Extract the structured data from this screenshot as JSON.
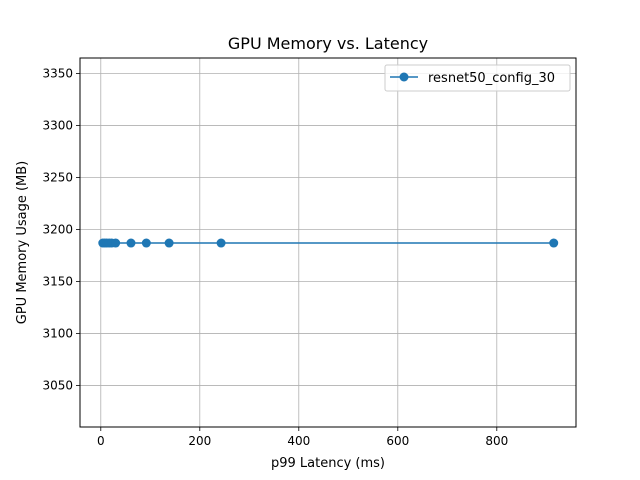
{
  "chart_data": {
    "type": "line",
    "title": "GPU Memory vs. Latency",
    "xlabel": "p99 Latency (ms)",
    "ylabel": "GPU Memory Usage (MB)",
    "xlim": [
      -42,
      960
    ],
    "ylim": [
      3010,
      3365
    ],
    "xticks": [
      0,
      200,
      400,
      600,
      800
    ],
    "yticks": [
      3050,
      3100,
      3150,
      3200,
      3250,
      3300,
      3350
    ],
    "grid": true,
    "legend_position": "top-right",
    "series": [
      {
        "name": "resnet50_config_30",
        "color": "#1f77b4",
        "marker": "circle",
        "x": [
          4,
          8,
          12,
          17,
          22,
          30,
          61,
          92,
          138,
          243,
          915
        ],
        "y": [
          3187,
          3187,
          3187,
          3187,
          3187,
          3187,
          3187,
          3187,
          3187,
          3187,
          3187
        ]
      }
    ]
  }
}
